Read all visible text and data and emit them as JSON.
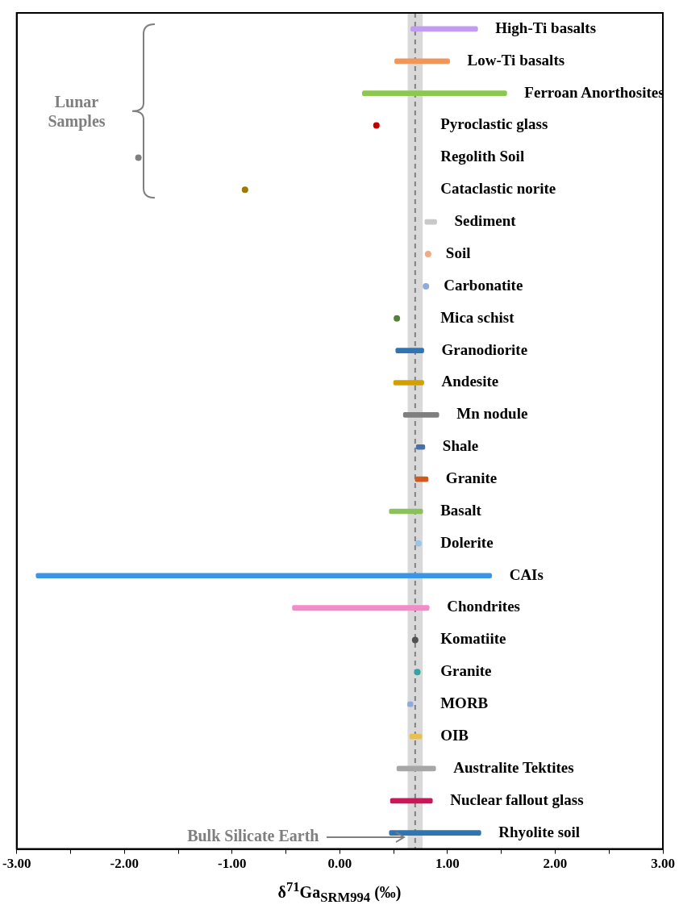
{
  "chart_data": {
    "type": "bar",
    "orientation": "horizontal",
    "xlabel": "δ$^{71}$Ga$_{SRM994}$ (‰)",
    "categories": [
      "High-Ti basalts",
      "Low-Ti basalts",
      "Ferroan Anorthosites",
      "Pyroclastic glass",
      "Regolith Soil",
      "Cataclastic norite",
      "Sediment",
      "Soil",
      "Carbonatite",
      "Mica schist",
      "Granodiorite",
      "Andesite",
      "Mn nodule",
      "Shale",
      "Granite",
      "Basalt",
      "Dolerite",
      "CAIs",
      "Chondrites",
      "Komatiite",
      "Granite",
      "MORB",
      "OIB",
      "Australite Tektites",
      "Nuclear fallout glass",
      "Rhyolite soil"
    ],
    "series": [
      {
        "base": [
          0.66,
          0.51,
          0.21,
          null,
          null,
          null,
          0.79,
          null,
          null,
          null,
          0.52,
          0.5,
          0.59,
          0.71,
          0.7,
          0.46,
          null,
          -2.82,
          -0.44,
          null,
          null,
          0.63,
          0.65,
          0.53,
          0.47,
          0.46
        ],
        "values": [
          0.62,
          0.51,
          1.34,
          null,
          null,
          null,
          0.11,
          null,
          null,
          null,
          0.26,
          0.28,
          0.33,
          0.08,
          0.12,
          0.31,
          null,
          4.23,
          1.27,
          null,
          null,
          0.05,
          0.11,
          0.36,
          0.39,
          0.85
        ],
        "colors": [
          "#c39bf0",
          "#f0965a",
          "#8cc850",
          "#c00000",
          "#808080",
          "#9a7a00",
          "#c8c8c8",
          "#f4a982",
          "#8faadc",
          "#548235",
          "#2e75b6",
          "#d4a000",
          "#7f7f7f",
          "#4a6fa5",
          "#d05a1e",
          "#8cc05a",
          "#9dc3e6",
          "#3a95e8",
          "#f08cc8",
          "#505050",
          "#3aa0a0",
          "#8faadc",
          "#e8c050",
          "#a6a6a6",
          "#c8185a",
          "#2e75b6"
        ]
      },
      {
        "type": "scatter",
        "values": [
          null,
          null,
          null,
          0.34,
          -1.87,
          -0.88,
          null,
          0.82,
          0.8,
          0.53,
          null,
          null,
          null,
          null,
          null,
          null,
          0.73,
          null,
          null,
          0.7,
          0.72,
          null,
          null,
          null,
          null,
          null
        ],
        "colors": [
          "#c39bf0",
          "#f0965a",
          "#8cc850",
          "#c00000",
          "#808080",
          "#9a7a00",
          "#c8c8c8",
          "#f4a982",
          "#8faadc",
          "#548235",
          "#2e75b6",
          "#d4a000",
          "#7f7f7f",
          "#4a6fa5",
          "#d05a1e",
          "#8cc05a",
          "#9dc3e6",
          "#3a95e8",
          "#f08cc8",
          "#505050",
          "#3aa0a0",
          "#8faadc",
          "#e8c050",
          "#a6a6a6",
          "#c8185a",
          "#2e75b6"
        ]
      }
    ],
    "xlim": [
      -3,
      3
    ],
    "xticks": [
      {
        "value": -3,
        "label": "-3.00"
      },
      {
        "value": -2.5,
        "label": null
      },
      {
        "value": -2,
        "label": "-2.00"
      },
      {
        "value": -1.5,
        "label": null
      },
      {
        "value": -1,
        "label": "-1.00"
      },
      {
        "value": -0.5,
        "label": null
      },
      {
        "value": 0,
        "label": "0.00"
      },
      {
        "value": 0.5,
        "label": null
      },
      {
        "value": 1,
        "label": "1.00"
      },
      {
        "value": 1.5,
        "label": null
      },
      {
        "value": 2,
        "label": "2.00"
      },
      {
        "value": 2.5,
        "label": null
      },
      {
        "value": 3,
        "label": "3.00"
      }
    ],
    "tick_labels": "x",
    "bands": [
      {
        "axis": "x",
        "from": 0.63,
        "to": 0.77,
        "label": "Bulk Silicate Earth",
        "color": "#d9d9d9"
      }
    ],
    "ref_lines": [
      {
        "axis": "x",
        "value": 0.7,
        "color": "#808080",
        "line_style": "dashed"
      }
    ],
    "annotations": [
      "Lunar Samples"
    ],
    "marker": "circle",
    "grid": false,
    "legend": false
  }
}
